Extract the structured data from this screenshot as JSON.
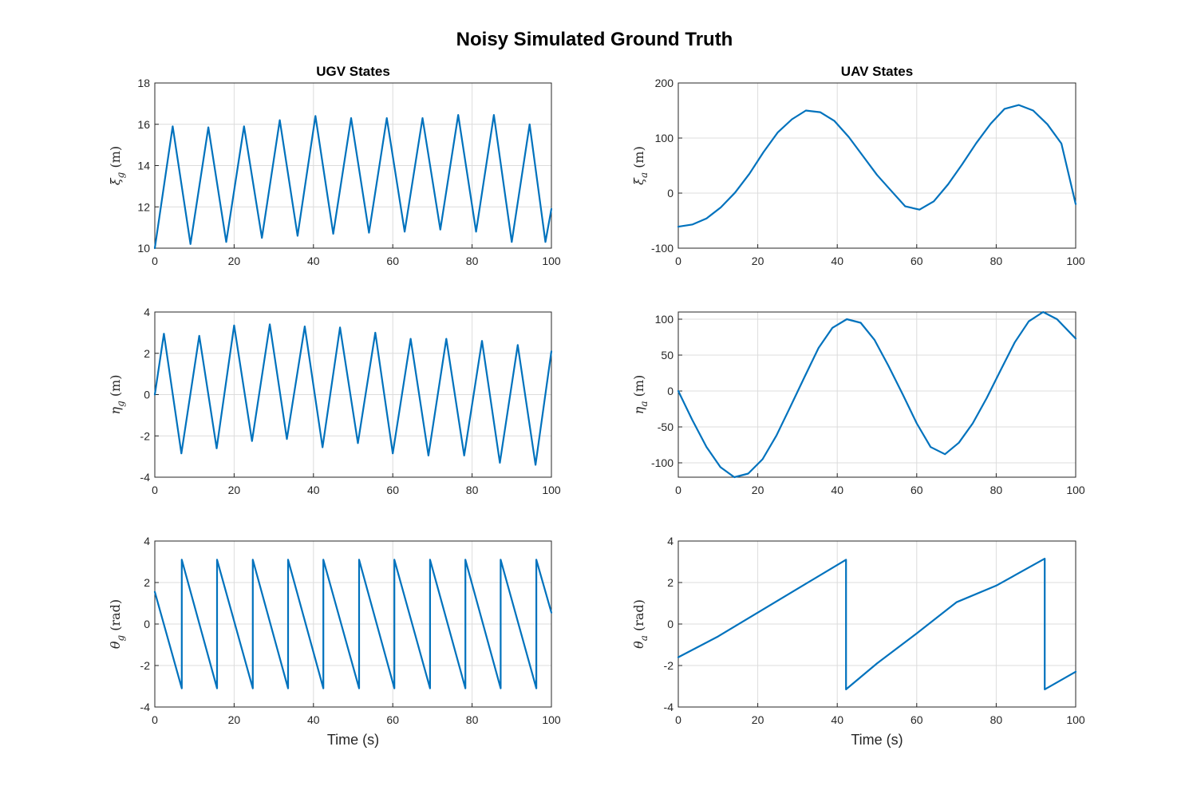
{
  "figure": {
    "title": "Noisy Simulated Ground Truth",
    "line_color": "#0072bd",
    "grid_color": "#dcdcdc"
  },
  "chart_data": [
    {
      "id": "ugv-xi",
      "type": "line",
      "title": "UGV States",
      "ylabel_sym": "ξ",
      "ylabel_sub": "g",
      "ylabel_unit": "(m)",
      "xlabel": "",
      "xlim": [
        0,
        100
      ],
      "ylim": [
        10,
        18
      ],
      "xticks": [
        0,
        20,
        40,
        60,
        80,
        100
      ],
      "yticks": [
        10,
        12,
        14,
        16,
        18
      ],
      "x": [
        0,
        4.5,
        9,
        13.5,
        18,
        22.5,
        27,
        31.5,
        36,
        40.5,
        45,
        49.5,
        54,
        58.5,
        63,
        67.5,
        72,
        76.5,
        81,
        85.5,
        90,
        94.5,
        98.5,
        100
      ],
      "y": [
        10.0,
        15.9,
        10.2,
        15.85,
        10.3,
        15.9,
        10.5,
        16.2,
        10.6,
        16.4,
        10.7,
        16.3,
        10.75,
        16.3,
        10.8,
        16.3,
        10.9,
        16.45,
        10.8,
        16.45,
        10.3,
        16.0,
        10.3,
        11.9
      ]
    },
    {
      "id": "uav-xi",
      "type": "line",
      "title": "UAV States",
      "ylabel_sym": "ξ",
      "ylabel_sub": "a",
      "ylabel_unit": "(m)",
      "xlabel": "",
      "xlim": [
        0,
        100
      ],
      "ylim": [
        -100,
        200
      ],
      "xticks": [
        0,
        20,
        40,
        60,
        80,
        100
      ],
      "yticks": [
        -100,
        0,
        100,
        200
      ],
      "x": [
        0,
        3.6,
        7.1,
        10.7,
        14.3,
        17.9,
        21.4,
        25,
        28.6,
        32.1,
        35.7,
        39.3,
        42.9,
        46.4,
        50,
        53.6,
        57.1,
        60.7,
        64.3,
        67.9,
        71.4,
        75,
        78.6,
        82.1,
        85.7,
        89.3,
        92.9,
        96.4,
        100
      ],
      "y": [
        -61,
        -57,
        -46,
        -26,
        1,
        35,
        74,
        110,
        134,
        150,
        147,
        131,
        102,
        68,
        33,
        4,
        -24,
        -30,
        -15,
        16,
        52,
        91,
        126,
        153,
        160,
        150,
        125,
        90,
        -20
      ]
    },
    {
      "id": "ugv-eta",
      "type": "line",
      "title": "",
      "ylabel_sym": "η",
      "ylabel_sub": "g",
      "ylabel_unit": "(m)",
      "xlabel": "",
      "xlim": [
        0,
        100
      ],
      "ylim": [
        -4,
        4
      ],
      "xticks": [
        0,
        20,
        40,
        60,
        80,
        100
      ],
      "yticks": [
        -4,
        -2,
        0,
        2,
        4
      ],
      "x": [
        0,
        2.3,
        6.7,
        11.2,
        15.6,
        20,
        24.5,
        29,
        33.3,
        37.8,
        42.3,
        46.7,
        51.2,
        55.6,
        60,
        64.5,
        69,
        73.5,
        78,
        82.5,
        87,
        91.5,
        96,
        100
      ],
      "y": [
        0.0,
        2.95,
        -2.85,
        2.85,
        -2.6,
        3.35,
        -2.25,
        3.4,
        -2.15,
        3.3,
        -2.55,
        3.25,
        -2.35,
        3.0,
        -2.85,
        2.7,
        -2.95,
        2.7,
        -2.95,
        2.6,
        -3.3,
        2.4,
        -3.4,
        2.1
      ]
    },
    {
      "id": "uav-eta",
      "type": "line",
      "title": "",
      "ylabel_sym": "η",
      "ylabel_sub": "a",
      "ylabel_unit": "(m)",
      "xlabel": "",
      "xlim": [
        0,
        100
      ],
      "ylim": [
        -120,
        110
      ],
      "xticks": [
        0,
        20,
        40,
        60,
        80,
        100
      ],
      "yticks": [
        -100,
        -50,
        0,
        50,
        100
      ],
      "x": [
        0,
        3.5,
        7.1,
        10.6,
        14.1,
        17.6,
        21.2,
        24.7,
        28.2,
        31.8,
        35.3,
        38.8,
        42.4,
        45.9,
        49.4,
        52.9,
        56.5,
        60,
        63.5,
        67.1,
        70.6,
        74.1,
        77.6,
        81.2,
        84.7,
        88.2,
        91.8,
        95.3,
        100
      ],
      "y": [
        0,
        -40,
        -78,
        -106,
        -120,
        -115,
        -95,
        -62,
        -22,
        20,
        60,
        88,
        100,
        95,
        71,
        35,
        -5,
        -45,
        -78,
        -88,
        -72,
        -45,
        -10,
        30,
        68,
        97,
        110,
        100,
        73
      ]
    },
    {
      "id": "ugv-theta",
      "type": "line",
      "title": "",
      "ylabel_sym": "θ",
      "ylabel_sub": "g",
      "ylabel_unit": "(rad)",
      "xlabel": "Time (s)",
      "xlim": [
        0,
        100
      ],
      "ylim": [
        -4,
        4
      ],
      "xticks": [
        0,
        20,
        40,
        60,
        80,
        100
      ],
      "yticks": [
        -4,
        -2,
        0,
        2,
        4
      ],
      "x": [
        0,
        6.8,
        6.8,
        15.7,
        15.7,
        24.7,
        24.7,
        33.6,
        33.6,
        42.5,
        42.5,
        51.5,
        51.5,
        60.4,
        60.4,
        69.4,
        69.4,
        78.3,
        78.3,
        87.2,
        87.2,
        96.2,
        96.2,
        100
      ],
      "y": [
        1.55,
        -3.1,
        3.1,
        -3.1,
        3.1,
        -3.1,
        3.1,
        -3.1,
        3.1,
        -3.1,
        3.1,
        -3.1,
        3.1,
        -3.1,
        3.1,
        -3.1,
        3.1,
        -3.1,
        3.1,
        -3.1,
        3.1,
        -3.1,
        3.1,
        0.55
      ]
    },
    {
      "id": "uav-theta",
      "type": "line",
      "title": "",
      "ylabel_sym": "θ",
      "ylabel_sub": "a",
      "ylabel_unit": "(rad)",
      "xlabel": "Time (s)",
      "xlim": [
        0,
        100
      ],
      "ylim": [
        -4,
        4
      ],
      "xticks": [
        0,
        20,
        40,
        60,
        80,
        100
      ],
      "yticks": [
        -4,
        -2,
        0,
        2,
        4
      ],
      "x": [
        0,
        10,
        20,
        30,
        42.2,
        42.2,
        50,
        60,
        70,
        80,
        92.2,
        92.2,
        100
      ],
      "y": [
        -1.6,
        -0.6,
        0.55,
        1.7,
        3.1,
        -3.15,
        -1.9,
        -0.45,
        1.05,
        1.85,
        3.15,
        -3.15,
        -2.3
      ]
    }
  ]
}
